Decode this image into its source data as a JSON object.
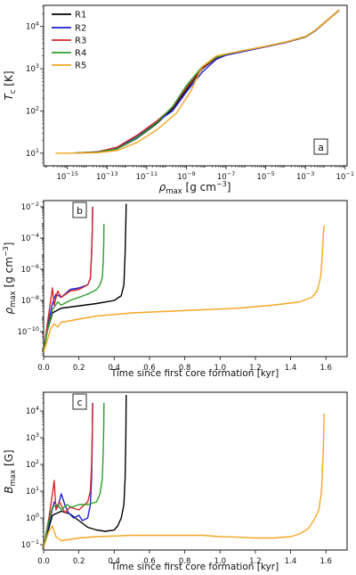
{
  "chart_data": [
    {
      "type": "line",
      "panel_label": "a",
      "xlabel": "ρ",
      "xlabel_sub": "max",
      "xlabel_unit": "[g cm",
      "xlabel_unit_sup": "−3",
      "xlabel_unit_end": "]",
      "ylabel": "T",
      "ylabel_sub": "c",
      "ylabel_unit": "[K]",
      "xscale": "log",
      "yscale": "log",
      "xlim_exp": [
        -16.2,
        -0.9
      ],
      "ylim_exp": [
        0.7,
        4.5
      ],
      "xticks": [
        {
          "exp": -15,
          "base": "10",
          "sup": "−15"
        },
        {
          "exp": -13,
          "base": "10",
          "sup": "−13"
        },
        {
          "exp": -11,
          "base": "10",
          "sup": "−11"
        },
        {
          "exp": -9,
          "base": "10",
          "sup": "−9"
        },
        {
          "exp": -7,
          "base": "10",
          "sup": "−7"
        },
        {
          "exp": -5,
          "base": "10",
          "sup": "−5"
        },
        {
          "exp": -3,
          "base": "10",
          "sup": "−3"
        },
        {
          "exp": -1,
          "base": "10",
          "sup": "−1"
        }
      ],
      "yticks": [
        {
          "exp": 1,
          "base": "10",
          "sup": "1"
        },
        {
          "exp": 2,
          "base": "10",
          "sup": "2"
        },
        {
          "exp": 3,
          "base": "10",
          "sup": "3"
        },
        {
          "exp": 4,
          "base": "10",
          "sup": "4"
        }
      ],
      "legend_position": "top-left",
      "series": [
        {
          "name": "R1",
          "color": "#000000",
          "log_x": [
            -14.8,
            -13.5,
            -12.5,
            -11.5,
            -10.5,
            -9.7,
            -9.0,
            -8.2,
            -7.5,
            -7.0,
            -6.0,
            -5.0,
            -4.0,
            -3.0,
            -2.5,
            -2.0,
            -1.5,
            -1.3
          ],
          "log_y": [
            1.0,
            1.02,
            1.1,
            1.35,
            1.7,
            2.05,
            2.5,
            3.0,
            3.25,
            3.33,
            3.43,
            3.52,
            3.62,
            3.75,
            3.9,
            4.1,
            4.3,
            4.38
          ]
        },
        {
          "name": "R2",
          "color": "#1f1fd6",
          "log_x": [
            -14.8,
            -13.5,
            -12.5,
            -11.5,
            -10.5,
            -9.7,
            -9.0,
            -8.2,
            -7.5,
            -7.0,
            -6.0,
            -5.0,
            -4.0,
            -3.0,
            -2.5,
            -2.0,
            -1.5,
            -1.3
          ],
          "log_y": [
            1.0,
            1.03,
            1.12,
            1.4,
            1.74,
            2.0,
            2.45,
            2.92,
            3.22,
            3.32,
            3.42,
            3.52,
            3.62,
            3.76,
            3.9,
            4.1,
            4.3,
            4.38
          ]
        },
        {
          "name": "R3",
          "color": "#d62728",
          "log_x": [
            -14.8,
            -13.5,
            -12.5,
            -11.5,
            -10.5,
            -9.7,
            -9.0,
            -8.2,
            -7.5,
            -7.0,
            -6.0,
            -5.0,
            -4.0,
            -3.0,
            -2.5,
            -2.0,
            -1.5,
            -1.3
          ],
          "log_y": [
            1.0,
            1.03,
            1.14,
            1.42,
            1.76,
            2.08,
            2.55,
            3.02,
            3.26,
            3.34,
            3.44,
            3.53,
            3.63,
            3.76,
            3.91,
            4.11,
            4.31,
            4.39
          ]
        },
        {
          "name": "R4",
          "color": "#2ca02c",
          "log_x": [
            -14.8,
            -13.5,
            -12.5,
            -11.5,
            -10.5,
            -9.7,
            -9.0,
            -8.2,
            -7.5,
            -7.0,
            -6.0,
            -5.0,
            -4.0,
            -3.0,
            -2.5,
            -2.0,
            -1.5,
            -1.3
          ],
          "log_y": [
            1.0,
            1.02,
            1.1,
            1.36,
            1.72,
            2.1,
            2.6,
            3.05,
            3.27,
            3.34,
            3.44,
            3.53,
            3.63,
            3.76,
            3.91,
            4.1,
            4.3,
            4.38
          ]
        },
        {
          "name": "R5",
          "color": "#f5a623",
          "log_x": [
            -15.6,
            -14.5,
            -13.5,
            -12.5,
            -11.5,
            -10.5,
            -9.5,
            -8.8,
            -8.2,
            -7.5,
            -7.0,
            -6.0,
            -5.0,
            -4.0,
            -3.0,
            -2.5,
            -2.0,
            -1.5,
            -1.3
          ],
          "log_y": [
            1.0,
            1.0,
            1.01,
            1.06,
            1.25,
            1.55,
            1.95,
            2.45,
            3.05,
            3.3,
            3.35,
            3.44,
            3.53,
            3.63,
            3.76,
            3.91,
            4.1,
            4.3,
            4.38
          ]
        }
      ]
    },
    {
      "type": "line",
      "panel_label": "b",
      "xlabel": "Time since first core formation [kyr]",
      "ylabel": "ρ",
      "ylabel_sub": "max",
      "ylabel_unit": "[g cm",
      "ylabel_unit_sup": "−3",
      "ylabel_unit_end": "]",
      "xscale": "linear",
      "yscale": "log",
      "xlim": [
        0.0,
        1.72
      ],
      "ylim_exp": [
        -11.6,
        -1.6
      ],
      "xticks": [
        {
          "value": 0.0,
          "label": "0.0"
        },
        {
          "value": 0.2,
          "label": "0.2"
        },
        {
          "value": 0.4,
          "label": "0.4"
        },
        {
          "value": 0.6,
          "label": "0.6"
        },
        {
          "value": 0.8,
          "label": "0.8"
        },
        {
          "value": 1.0,
          "label": "1.0"
        },
        {
          "value": 1.2,
          "label": "1.2"
        },
        {
          "value": 1.4,
          "label": "1.4"
        },
        {
          "value": 1.6,
          "label": "1.6"
        }
      ],
      "yticks": [
        {
          "exp": -10,
          "base": "10",
          "sup": "−10"
        },
        {
          "exp": -8,
          "base": "10",
          "sup": "−8"
        },
        {
          "exp": -6,
          "base": "10",
          "sup": "−6"
        },
        {
          "exp": -4,
          "base": "10",
          "sup": "−4"
        },
        {
          "exp": -2,
          "base": "10",
          "sup": "−2"
        }
      ],
      "series": [
        {
          "name": "R1",
          "color": "#000000",
          "x": [
            0.0,
            0.02,
            0.05,
            0.1,
            0.2,
            0.3,
            0.4,
            0.44,
            0.455,
            0.462,
            0.466,
            0.468
          ],
          "log_y": [
            -11.3,
            -10.0,
            -8.8,
            -8.5,
            -8.35,
            -8.2,
            -8.0,
            -7.7,
            -7.0,
            -5.0,
            -3.0,
            -1.8
          ]
        },
        {
          "name": "R2",
          "color": "#1f1fd6",
          "x": [
            0.0,
            0.02,
            0.05,
            0.07,
            0.1,
            0.15,
            0.2,
            0.25,
            0.265,
            0.272,
            0.276,
            0.278
          ],
          "log_y": [
            -11.3,
            -9.8,
            -8.2,
            -7.6,
            -7.8,
            -7.3,
            -7.2,
            -7.0,
            -6.6,
            -5.0,
            -3.5,
            -2.0
          ]
        },
        {
          "name": "R3",
          "color": "#d62728",
          "x": [
            0.0,
            0.02,
            0.04,
            0.05,
            0.06,
            0.08,
            0.1,
            0.15,
            0.2,
            0.25,
            0.265,
            0.272,
            0.276,
            0.278
          ],
          "log_y": [
            -11.3,
            -9.6,
            -8.0,
            -7.2,
            -8.3,
            -7.4,
            -7.8,
            -7.4,
            -7.3,
            -7.0,
            -6.6,
            -5.0,
            -3.5,
            -2.0
          ]
        },
        {
          "name": "R4",
          "color": "#2ca02c",
          "x": [
            0.0,
            0.02,
            0.05,
            0.08,
            0.1,
            0.15,
            0.2,
            0.25,
            0.3,
            0.32,
            0.333,
            0.338,
            0.341,
            0.342
          ],
          "log_y": [
            -11.3,
            -10.0,
            -8.6,
            -8.1,
            -8.3,
            -8.0,
            -7.8,
            -7.6,
            -7.3,
            -7.0,
            -6.5,
            -5.5,
            -4.3,
            -3.1
          ]
        },
        {
          "name": "R5",
          "color": "#f5a623",
          "x": [
            0.0,
            0.02,
            0.04,
            0.06,
            0.08,
            0.1,
            0.2,
            0.3,
            0.5,
            0.7,
            0.9,
            1.1,
            1.3,
            1.45,
            1.52,
            1.55,
            1.57,
            1.58,
            1.585,
            1.59
          ],
          "log_y": [
            -11.3,
            -10.6,
            -9.8,
            -9.5,
            -9.7,
            -9.4,
            -9.2,
            -9.0,
            -8.8,
            -8.7,
            -8.6,
            -8.5,
            -8.3,
            -8.1,
            -7.8,
            -7.4,
            -6.5,
            -5.0,
            -3.8,
            -3.2
          ]
        }
      ]
    },
    {
      "type": "line",
      "panel_label": "c",
      "xlabel": "Time since first core formation [kyr]",
      "ylabel": "B",
      "ylabel_sub": "max",
      "ylabel_unit": "[G]",
      "xscale": "linear",
      "yscale": "log",
      "xlim": [
        0.0,
        1.72
      ],
      "ylim_exp": [
        -1.2,
        4.7
      ],
      "xticks": [
        {
          "value": 0.0,
          "label": "0.0"
        },
        {
          "value": 0.2,
          "label": "0.2"
        },
        {
          "value": 0.4,
          "label": "0.4"
        },
        {
          "value": 0.6,
          "label": "0.6"
        },
        {
          "value": 0.8,
          "label": "0.8"
        },
        {
          "value": 1.0,
          "label": "1.0"
        },
        {
          "value": 1.2,
          "label": "1.2"
        },
        {
          "value": 1.4,
          "label": "1.4"
        },
        {
          "value": 1.6,
          "label": "1.6"
        }
      ],
      "yticks": [
        {
          "exp": -1,
          "base": "10",
          "sup": "−1"
        },
        {
          "exp": 0,
          "base": "10",
          "sup": "0"
        },
        {
          "exp": 1,
          "base": "10",
          "sup": "1"
        },
        {
          "exp": 2,
          "base": "10",
          "sup": "2"
        },
        {
          "exp": 3,
          "base": "10",
          "sup": "3"
        },
        {
          "exp": 4,
          "base": "10",
          "sup": "4"
        }
      ],
      "series": [
        {
          "name": "R1",
          "color": "#000000",
          "x": [
            0.0,
            0.02,
            0.05,
            0.1,
            0.15,
            0.2,
            0.25,
            0.3,
            0.35,
            0.4,
            0.42,
            0.44,
            0.455,
            0.462,
            0.466,
            0.468
          ],
          "log_y": [
            -1.1,
            -0.6,
            0.1,
            0.25,
            0.15,
            -0.1,
            -0.35,
            -0.45,
            -0.5,
            -0.45,
            -0.3,
            0.0,
            0.5,
            1.5,
            3.0,
            4.6
          ]
        },
        {
          "name": "R2",
          "color": "#1f1fd6",
          "x": [
            0.0,
            0.03,
            0.06,
            0.08,
            0.1,
            0.12,
            0.14,
            0.17,
            0.2,
            0.22,
            0.25,
            0.265,
            0.272,
            0.276,
            0.278
          ],
          "log_y": [
            -1.1,
            -0.2,
            0.6,
            0.4,
            0.9,
            0.5,
            0.2,
            0.0,
            0.1,
            -0.1,
            0.0,
            0.5,
            1.5,
            3.0,
            4.3
          ]
        },
        {
          "name": "R3",
          "color": "#d62728",
          "x": [
            0.0,
            0.03,
            0.05,
            0.06,
            0.07,
            0.09,
            0.12,
            0.15,
            0.2,
            0.25,
            0.265,
            0.272,
            0.276,
            0.278
          ],
          "log_y": [
            -1.1,
            0.0,
            0.9,
            1.4,
            0.3,
            0.6,
            0.2,
            0.4,
            0.3,
            0.6,
            1.0,
            2.0,
            3.3,
            4.3
          ]
        },
        {
          "name": "R4",
          "color": "#2ca02c",
          "x": [
            0.0,
            0.03,
            0.05,
            0.08,
            0.1,
            0.13,
            0.16,
            0.2,
            0.25,
            0.3,
            0.32,
            0.333,
            0.338,
            0.341,
            0.342
          ],
          "log_y": [
            -1.1,
            -0.1,
            0.4,
            0.5,
            0.3,
            0.5,
            0.4,
            0.5,
            0.5,
            0.6,
            0.9,
            1.5,
            2.5,
            3.5,
            4.3
          ]
        },
        {
          "name": "R5",
          "color": "#f5a623",
          "x": [
            0.0,
            0.03,
            0.05,
            0.07,
            0.1,
            0.15,
            0.2,
            0.3,
            0.5,
            0.7,
            0.9,
            1.0,
            1.1,
            1.2,
            1.3,
            1.4,
            1.45,
            1.5,
            1.53,
            1.56,
            1.575,
            1.585,
            1.59
          ],
          "log_y": [
            -1.1,
            -0.5,
            -0.3,
            -0.7,
            -0.85,
            -0.8,
            -0.75,
            -0.7,
            -0.65,
            -0.65,
            -0.65,
            -0.7,
            -0.72,
            -0.75,
            -0.75,
            -0.7,
            -0.6,
            -0.4,
            -0.1,
            0.3,
            1.0,
            2.5,
            3.9
          ]
        }
      ]
    }
  ]
}
